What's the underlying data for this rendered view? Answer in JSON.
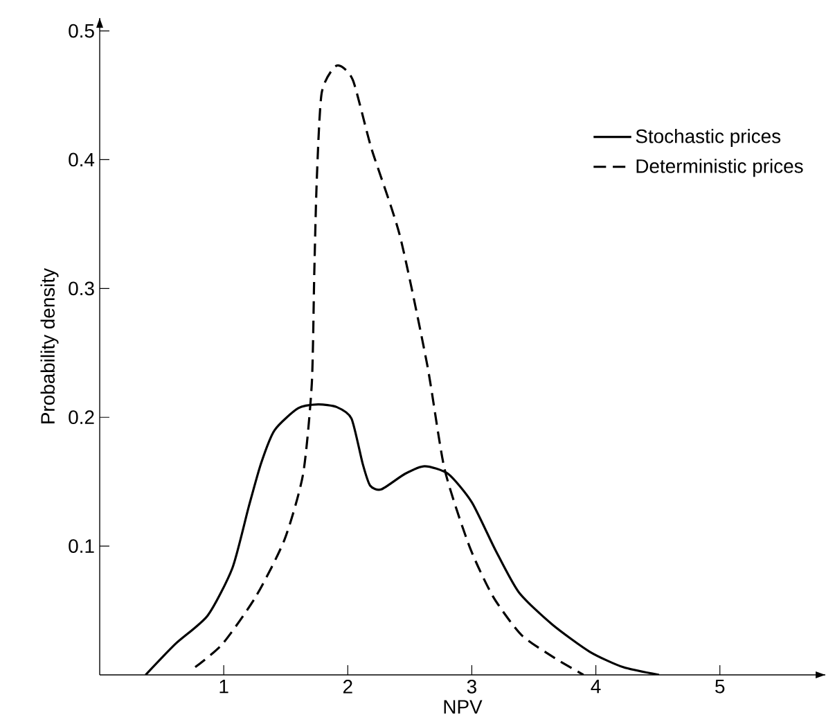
{
  "chart_data": {
    "type": "line",
    "xlabel": "NPV",
    "ylabel": "Probability density",
    "xlim": [
      0,
      5.85
    ],
    "ylim": [
      0,
      0.51
    ],
    "xticks": [
      1,
      2,
      3,
      4,
      5
    ],
    "yticks": [
      {
        "value": 0.1,
        "label": "0.1"
      },
      {
        "value": 0.2,
        "label": "0.2"
      },
      {
        "value": 0.3,
        "label": "0.3"
      },
      {
        "value": 0.4,
        "label": "0.4"
      },
      {
        "value": 0.5,
        "label": "0.5"
      }
    ],
    "legend": "top right",
    "grid": false,
    "marker": "none",
    "series": [
      {
        "name": "Stochastic prices",
        "color": "#000000",
        "line_style": "solid",
        "x": [
          0.37,
          0.61,
          0.87,
          1.07,
          1.2,
          1.3,
          1.41,
          1.6,
          1.76,
          1.91,
          2.03,
          2.12,
          2.18,
          2.27,
          2.46,
          2.62,
          2.81,
          3.0,
          3.19,
          3.38,
          3.65,
          3.95,
          4.22,
          4.51
        ],
        "values": [
          0.0,
          0.024,
          0.046,
          0.083,
          0.13,
          0.164,
          0.19,
          0.207,
          0.21,
          0.208,
          0.199,
          0.164,
          0.147,
          0.144,
          0.156,
          0.162,
          0.156,
          0.134,
          0.097,
          0.064,
          0.039,
          0.018,
          0.006,
          0.0
        ]
      },
      {
        "name": "Deterministic prices",
        "color": "#000000",
        "line_style": "dashed",
        "x": [
          0.77,
          0.99,
          1.26,
          1.49,
          1.64,
          1.71,
          1.73,
          1.75,
          1.79,
          1.91,
          2.04,
          2.19,
          2.42,
          2.64,
          2.78,
          2.98,
          3.17,
          3.4,
          3.67,
          3.9
        ],
        "values": [
          0.006,
          0.024,
          0.061,
          0.105,
          0.156,
          0.226,
          0.312,
          0.384,
          0.452,
          0.473,
          0.462,
          0.409,
          0.341,
          0.241,
          0.16,
          0.1,
          0.061,
          0.031,
          0.013,
          0.0
        ]
      }
    ]
  }
}
